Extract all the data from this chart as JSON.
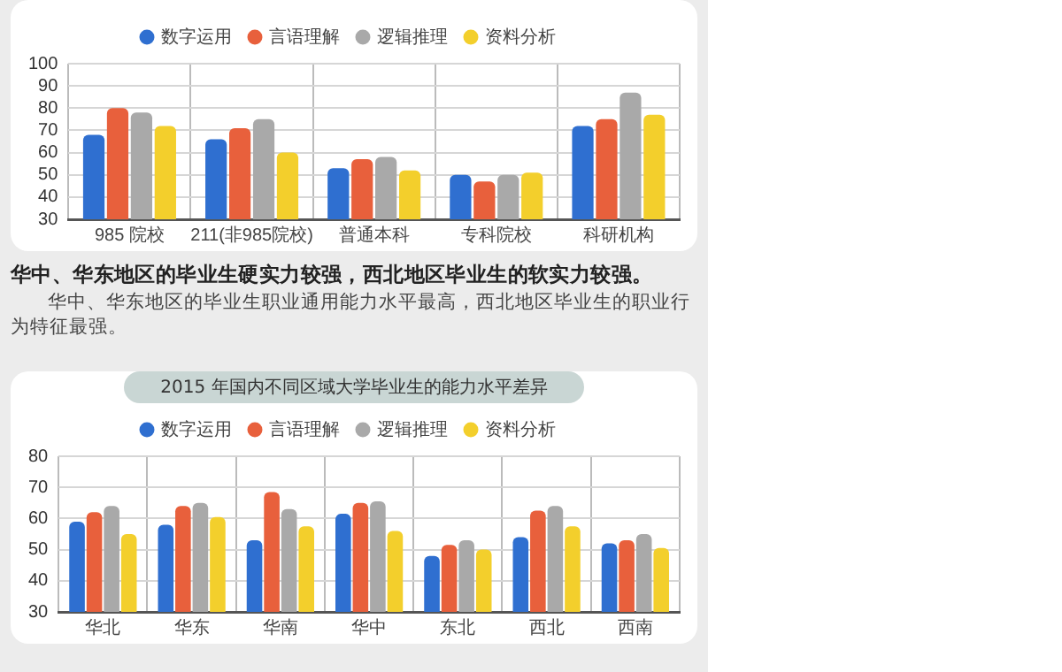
{
  "chart_data": [
    {
      "type": "bar",
      "categories": [
        "985 院校",
        "211(非985院校)",
        "普通本科",
        "专科院校",
        "科研机构"
      ],
      "series": [
        {
          "name": "数字运用",
          "color": "#2f6fd0",
          "values": [
            68,
            66,
            53,
            50,
            72
          ]
        },
        {
          "name": "言语理解",
          "color": "#e8603c",
          "values": [
            80,
            71,
            57,
            47,
            75
          ]
        },
        {
          "name": "逻辑推理",
          "color": "#a9a9a9",
          "values": [
            78,
            75,
            58,
            50,
            87
          ]
        },
        {
          "name": "资料分析",
          "color": "#f3cf2c",
          "values": [
            72,
            60,
            52,
            51,
            77
          ]
        }
      ],
      "ylim": [
        30,
        100
      ],
      "yticks": [
        30,
        40,
        50,
        60,
        70,
        80,
        90,
        100
      ],
      "grid": true,
      "legend": "top",
      "annotations": [
        "华中、华东地区的毕业生硬实力较强，西北地区毕业生的软实力较强。",
        "华中、华东地区的毕业生职业通用能力水平最高，西北地区毕业生的职业行为特征最强。"
      ]
    },
    {
      "type": "bar",
      "title": "2015 年国内不同区域大学毕业生的能力水平差异",
      "categories": [
        "华北",
        "华东",
        "华南",
        "华中",
        "东北",
        "西北",
        "西南"
      ],
      "series": [
        {
          "name": "数字运用",
          "color": "#2f6fd0",
          "values": [
            59,
            58,
            53,
            61.5,
            48,
            54,
            52
          ]
        },
        {
          "name": "言语理解",
          "color": "#e8603c",
          "values": [
            62,
            64,
            68.5,
            65,
            51.5,
            62.5,
            53
          ]
        },
        {
          "name": "逻辑推理",
          "color": "#a9a9a9",
          "values": [
            64,
            65,
            63,
            65.5,
            53,
            64,
            55
          ]
        },
        {
          "name": "资料分析",
          "color": "#f3cf2c",
          "values": [
            55,
            60.5,
            57.5,
            56,
            50,
            57.5,
            50.5
          ]
        }
      ],
      "ylim": [
        30,
        80
      ],
      "yticks": [
        30,
        40,
        50,
        60,
        70,
        80
      ],
      "grid": true,
      "legend": "top"
    }
  ]
}
